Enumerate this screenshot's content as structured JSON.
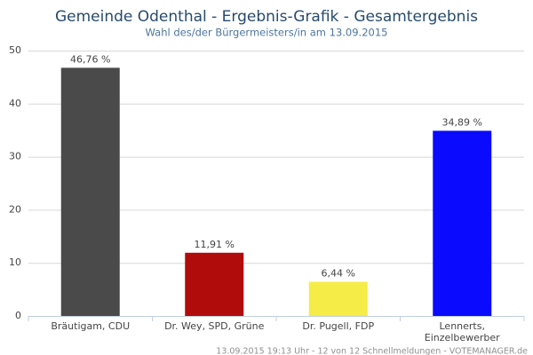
{
  "chart_data": {
    "type": "bar",
    "title": "Gemeinde Odenthal - Ergebnis-Grafik - Gesamtergebnis",
    "subtitle": "Wahl des/der Bürgermeisters/in am 13.09.2015",
    "categories": [
      "Bräutigam, CDU",
      "Dr. Wey, SPD, Grüne",
      "Dr. Pugell, FDP",
      "Lennerts, Einzelbewerber"
    ],
    "values": [
      46.76,
      11.91,
      6.44,
      34.89
    ],
    "value_labels": [
      "46,76 %",
      "11,91 %",
      "6,44 %",
      "34,89 %"
    ],
    "colors": [
      "#4a4a4a",
      "#b00c0c",
      "#f5ec48",
      "#0a0aff"
    ],
    "ylim": [
      0,
      50
    ],
    "yticks": [
      0,
      10,
      20,
      30,
      40,
      50
    ],
    "grid": true,
    "footer": "13.09.2015 19:13 Uhr - 12 von 12 Schnellmeldungen - VOTEMANAGER.de"
  }
}
